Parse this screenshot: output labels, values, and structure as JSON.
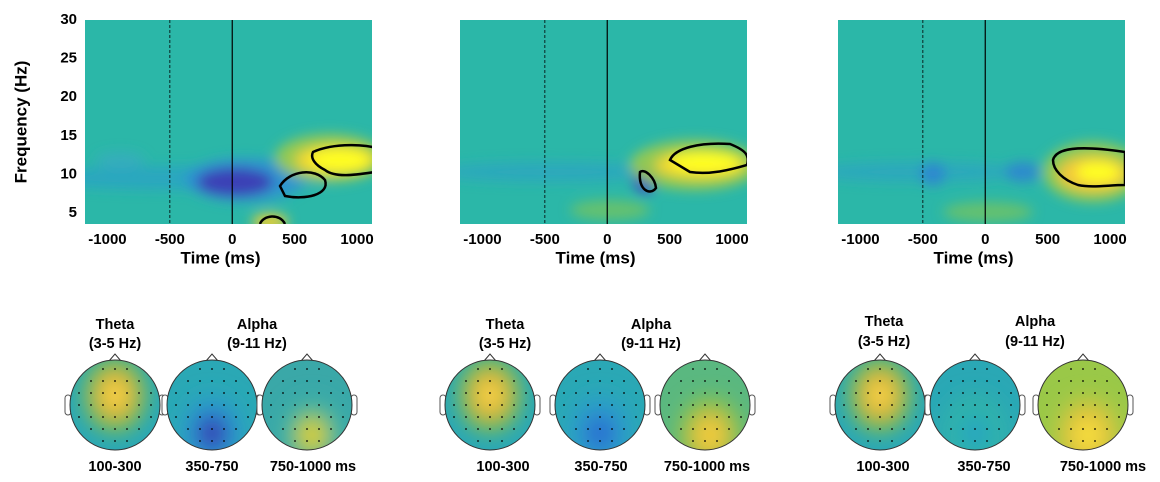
{
  "chart_data": [
    {
      "type": "heatmap",
      "xlabel": "Time (ms)",
      "ylabel": "Frequency (Hz)",
      "xlim": [
        -1180,
        1120
      ],
      "ylim": [
        3.6,
        30
      ],
      "xticks": [
        -1000,
        -500,
        0,
        500,
        1000
      ],
      "yticks": [
        5,
        10,
        15,
        20,
        25,
        30
      ]
    },
    {
      "type": "heatmap",
      "xlabel": "Time (ms)",
      "xlim": [
        -1180,
        1120
      ],
      "ylim": [
        3.6,
        30
      ],
      "xticks": [
        -1000,
        -500,
        0,
        500,
        1000
      ]
    },
    {
      "type": "heatmap",
      "xlabel": "Time (ms)",
      "xlim": [
        -1180,
        1120
      ],
      "ylim": [
        3.6,
        30
      ],
      "xticks": [
        -1000,
        -500,
        0,
        500,
        1000
      ]
    }
  ],
  "topomaps": [
    {
      "theta": "Theta",
      "theta_range": "(3-5 Hz)",
      "alpha": "Alpha",
      "alpha_range": "(9-11 Hz)",
      "windows": [
        "100-300",
        "350-750",
        "750-1000 ms"
      ]
    },
    {
      "theta": "Theta",
      "theta_range": "(3-5 Hz)",
      "alpha": "Alpha",
      "alpha_range": "(9-11 Hz)",
      "windows": [
        "100-300",
        "350-750",
        "750-1000 ms"
      ]
    },
    {
      "theta": "Theta",
      "theta_range": "(3-5 Hz)",
      "alpha": "Alpha",
      "alpha_range": "(9-11 Hz)",
      "windows": [
        "100-300",
        "350-750",
        "750-1000 ms"
      ]
    }
  ]
}
